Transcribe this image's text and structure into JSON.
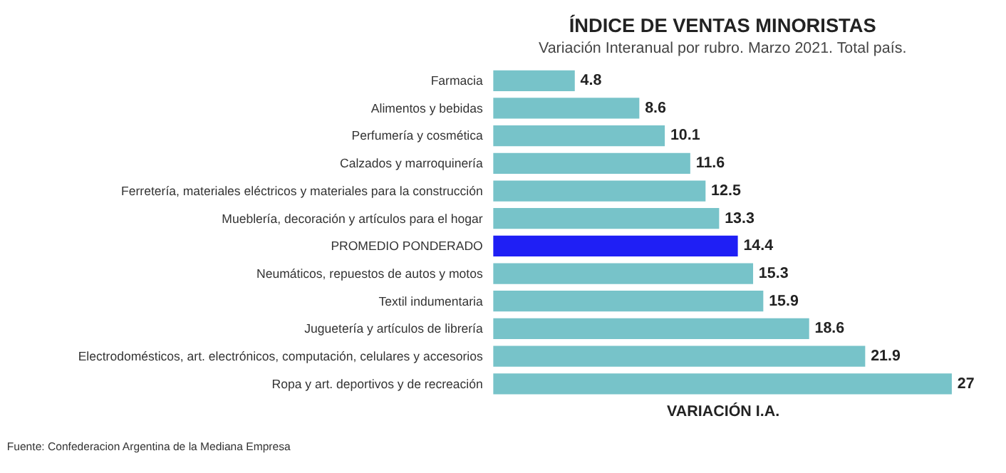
{
  "chart_data": {
    "type": "bar",
    "orientation": "horizontal",
    "title": "ÍNDICE DE VENTAS MINORISTAS",
    "subtitle": "Variación Interanual por rubro. Marzo 2021. Total país.",
    "xlabel": "VARIACIÓN I.A.",
    "categories": [
      "Farmacia",
      "Alimentos y bebidas",
      "Perfumería y cosmética",
      "Calzados y marroquinería",
      "Ferretería, materiales eléctricos y materiales para la construcción",
      "Mueblería, decoración y artículos para el hogar",
      "PROMEDIO PONDERADO",
      "Neumáticos, repuestos de autos y motos",
      "Textil indumentaria",
      "Juguetería y artículos de librería",
      "Electrodomésticos, art. electrónicos, computación, celulares y accesorios",
      "Ropa y art. deportivos y de recreación"
    ],
    "values": [
      4.8,
      8.6,
      10.1,
      11.6,
      12.5,
      13.3,
      14.4,
      15.3,
      15.9,
      18.6,
      21.9,
      27
    ],
    "colors": [
      "#77c3c9",
      "#77c3c9",
      "#77c3c9",
      "#77c3c9",
      "#77c3c9",
      "#77c3c9",
      "#1f1ff5",
      "#77c3c9",
      "#77c3c9",
      "#77c3c9",
      "#77c3c9",
      "#77c3c9"
    ],
    "data_labels": true,
    "grid": false,
    "tick_labels": "y",
    "annotations": [
      "Fuente: Confederacion Argentina de la Mediana Empresa"
    ]
  }
}
